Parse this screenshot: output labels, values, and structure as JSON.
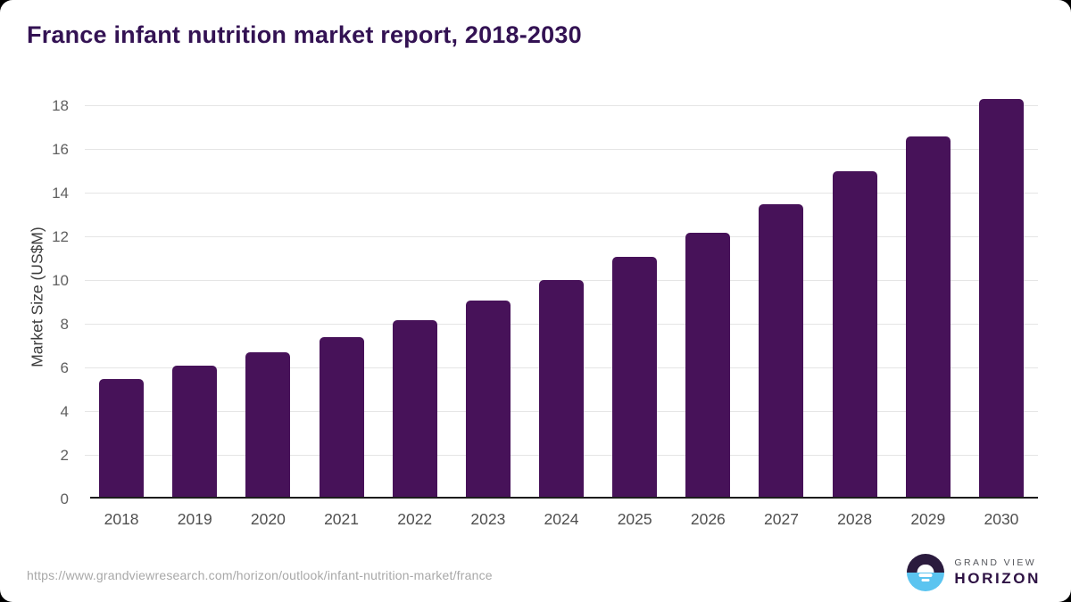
{
  "title": "France infant nutrition market report, 2018-2030",
  "chart_data": {
    "type": "bar",
    "title": "France infant nutrition market report, 2018-2030",
    "categories": [
      "2018",
      "2019",
      "2020",
      "2021",
      "2022",
      "2023",
      "2024",
      "2025",
      "2026",
      "2027",
      "2028",
      "2029",
      "2030"
    ],
    "values": [
      5.4,
      6.0,
      6.6,
      7.3,
      8.1,
      9.0,
      9.9,
      11.0,
      12.1,
      13.4,
      14.9,
      16.5,
      18.2
    ],
    "xlabel": "",
    "ylabel": "Market Size (US$M)",
    "ylim": [
      0,
      18
    ],
    "ytick_step": 2,
    "grid": true,
    "legend": false,
    "bar_color": "#471259"
  },
  "colors": {
    "bar": "#471259",
    "title": "#331253",
    "axis_text": "#4f4f4f",
    "gridline": "#e5e5e5",
    "axis_line": "#1c1c1c",
    "url_text": "#a8a8a8",
    "logo_dark": "#2b1b3e",
    "logo_blue": "#5bc4f0"
  },
  "footer": {
    "source_url": "https://www.grandviewresearch.com/horizon/outlook/infant-nutrition-market/france",
    "logo": {
      "line1": "GRAND VIEW",
      "line2": "HORIZON"
    }
  }
}
